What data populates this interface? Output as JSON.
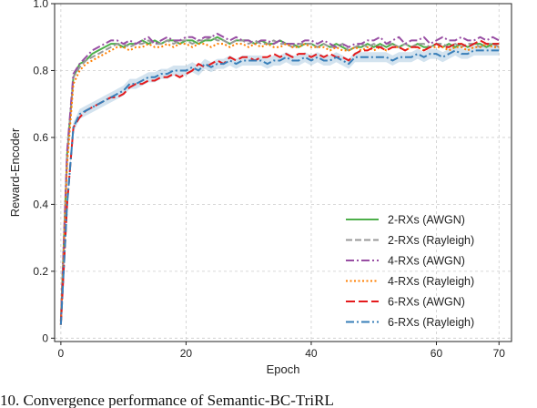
{
  "chart_data": {
    "type": "line",
    "xlabel": "Epoch",
    "ylabel": "Reward-Encoder",
    "xlim": [
      -1,
      72
    ],
    "ylim": [
      -0.01,
      1.0
    ],
    "xticks": [
      0,
      20,
      40,
      60,
      70
    ],
    "yticks": [
      0,
      0.2,
      0.4,
      0.6,
      0.8,
      1.0
    ],
    "ytick_labels": [
      "0",
      "0.2",
      "0.4",
      "0.6",
      "0.8",
      "1.0"
    ],
    "grid": true,
    "legend_position": "lower-right",
    "x": [
      0,
      1,
      2,
      3,
      4,
      5,
      6,
      7,
      8,
      9,
      10,
      11,
      12,
      13,
      14,
      15,
      16,
      17,
      18,
      19,
      20,
      21,
      22,
      23,
      24,
      25,
      26,
      27,
      28,
      29,
      30,
      31,
      32,
      33,
      34,
      35,
      36,
      37,
      38,
      39,
      40,
      41,
      42,
      43,
      44,
      45,
      46,
      47,
      48,
      49,
      50,
      51,
      52,
      53,
      54,
      55,
      56,
      57,
      58,
      59,
      60,
      61,
      62,
      63,
      64,
      65,
      66,
      67,
      68,
      69,
      70
    ],
    "series": [
      {
        "name": "2-RXs (AWGN)",
        "color": "#4daf4a",
        "style": "solid",
        "values": [
          0.05,
          0.55,
          0.78,
          0.82,
          0.83,
          0.85,
          0.86,
          0.87,
          0.88,
          0.88,
          0.87,
          0.88,
          0.88,
          0.89,
          0.88,
          0.89,
          0.88,
          0.89,
          0.89,
          0.88,
          0.89,
          0.89,
          0.88,
          0.89,
          0.89,
          0.9,
          0.89,
          0.88,
          0.89,
          0.89,
          0.89,
          0.88,
          0.89,
          0.88,
          0.88,
          0.89,
          0.88,
          0.88,
          0.87,
          0.88,
          0.88,
          0.87,
          0.88,
          0.87,
          0.88,
          0.87,
          0.86,
          0.87,
          0.87,
          0.88,
          0.87,
          0.88,
          0.87,
          0.88,
          0.87,
          0.88,
          0.87,
          0.88,
          0.87,
          0.87,
          0.88,
          0.87,
          0.88,
          0.87,
          0.88,
          0.87,
          0.88,
          0.88,
          0.87,
          0.88,
          0.88
        ]
      },
      {
        "name": "2-RXs (Rayleigh)",
        "color": "#999999",
        "style": "dashed",
        "values": [
          0.04,
          0.54,
          0.78,
          0.81,
          0.83,
          0.84,
          0.85,
          0.86,
          0.87,
          0.88,
          0.88,
          0.87,
          0.88,
          0.88,
          0.89,
          0.88,
          0.88,
          0.89,
          0.88,
          0.89,
          0.89,
          0.88,
          0.89,
          0.89,
          0.9,
          0.89,
          0.89,
          0.88,
          0.89,
          0.89,
          0.88,
          0.89,
          0.88,
          0.88,
          0.89,
          0.88,
          0.88,
          0.87,
          0.88,
          0.88,
          0.88,
          0.87,
          0.88,
          0.87,
          0.87,
          0.88,
          0.86,
          0.87,
          0.88,
          0.87,
          0.88,
          0.87,
          0.88,
          0.88,
          0.87,
          0.88,
          0.87,
          0.88,
          0.88,
          0.87,
          0.88,
          0.88,
          0.87,
          0.88,
          0.87,
          0.88,
          0.88,
          0.87,
          0.88,
          0.88,
          0.87
        ]
      },
      {
        "name": "4-RXs (AWGN)",
        "color": "#984ea3",
        "style": "dashdot",
        "values": [
          0.05,
          0.56,
          0.79,
          0.82,
          0.84,
          0.86,
          0.87,
          0.88,
          0.89,
          0.89,
          0.88,
          0.89,
          0.88,
          0.89,
          0.9,
          0.88,
          0.89,
          0.9,
          0.89,
          0.89,
          0.9,
          0.9,
          0.89,
          0.9,
          0.9,
          0.91,
          0.9,
          0.89,
          0.9,
          0.89,
          0.89,
          0.88,
          0.89,
          0.89,
          0.88,
          0.89,
          0.88,
          0.88,
          0.88,
          0.89,
          0.89,
          0.88,
          0.89,
          0.88,
          0.87,
          0.88,
          0.87,
          0.88,
          0.88,
          0.89,
          0.89,
          0.9,
          0.88,
          0.89,
          0.9,
          0.88,
          0.89,
          0.89,
          0.9,
          0.88,
          0.89,
          0.9,
          0.89,
          0.89,
          0.9,
          0.89,
          0.89,
          0.9,
          0.89,
          0.9,
          0.89
        ]
      },
      {
        "name": "4-RXs (Rayleigh)",
        "color": "#ff7f00",
        "style": "dotted",
        "values": [
          0.04,
          0.52,
          0.76,
          0.8,
          0.82,
          0.83,
          0.84,
          0.85,
          0.86,
          0.87,
          0.87,
          0.86,
          0.87,
          0.87,
          0.88,
          0.87,
          0.87,
          0.88,
          0.87,
          0.88,
          0.88,
          0.87,
          0.88,
          0.88,
          0.87,
          0.88,
          0.88,
          0.87,
          0.88,
          0.88,
          0.87,
          0.88,
          0.87,
          0.88,
          0.87,
          0.87,
          0.88,
          0.87,
          0.87,
          0.88,
          0.87,
          0.87,
          0.87,
          0.86,
          0.87,
          0.86,
          0.86,
          0.87,
          0.86,
          0.87,
          0.86,
          0.87,
          0.86,
          0.87,
          0.87,
          0.86,
          0.87,
          0.87,
          0.86,
          0.87,
          0.87,
          0.87,
          0.86,
          0.87,
          0.87,
          0.86,
          0.87,
          0.87,
          0.88,
          0.87,
          0.87
        ]
      },
      {
        "name": "6-RXs (AWGN)",
        "color": "#e41a1c",
        "style": "longdash",
        "values": [
          0.04,
          0.4,
          0.63,
          0.66,
          0.68,
          0.69,
          0.7,
          0.71,
          0.72,
          0.72,
          0.73,
          0.75,
          0.76,
          0.76,
          0.77,
          0.77,
          0.78,
          0.78,
          0.79,
          0.78,
          0.79,
          0.8,
          0.82,
          0.81,
          0.82,
          0.83,
          0.82,
          0.84,
          0.83,
          0.84,
          0.84,
          0.83,
          0.84,
          0.84,
          0.85,
          0.84,
          0.85,
          0.84,
          0.85,
          0.85,
          0.84,
          0.85,
          0.84,
          0.85,
          0.84,
          0.84,
          0.83,
          0.85,
          0.86,
          0.86,
          0.87,
          0.87,
          0.86,
          0.87,
          0.87,
          0.86,
          0.87,
          0.87,
          0.86,
          0.87,
          0.88,
          0.87,
          0.87,
          0.88,
          0.88,
          0.87,
          0.88,
          0.89,
          0.88,
          0.88,
          0.88
        ]
      },
      {
        "name": "6-RXs (Rayleigh)",
        "color": "#377eb8",
        "style": "dashdot",
        "band": 0.015,
        "values": [
          0.04,
          0.4,
          0.63,
          0.67,
          0.68,
          0.69,
          0.7,
          0.71,
          0.72,
          0.73,
          0.74,
          0.76,
          0.76,
          0.77,
          0.78,
          0.78,
          0.79,
          0.79,
          0.8,
          0.8,
          0.8,
          0.81,
          0.8,
          0.82,
          0.81,
          0.82,
          0.82,
          0.83,
          0.82,
          0.83,
          0.83,
          0.83,
          0.83,
          0.82,
          0.83,
          0.83,
          0.84,
          0.83,
          0.83,
          0.84,
          0.83,
          0.84,
          0.83,
          0.83,
          0.84,
          0.83,
          0.82,
          0.84,
          0.84,
          0.84,
          0.84,
          0.84,
          0.84,
          0.83,
          0.84,
          0.84,
          0.84,
          0.85,
          0.84,
          0.85,
          0.85,
          0.84,
          0.85,
          0.86,
          0.85,
          0.85,
          0.86,
          0.86,
          0.86,
          0.86,
          0.86
        ]
      }
    ]
  },
  "caption": {
    "text": "10.  Convergence performance of Semantic-BC-TriRL"
  }
}
